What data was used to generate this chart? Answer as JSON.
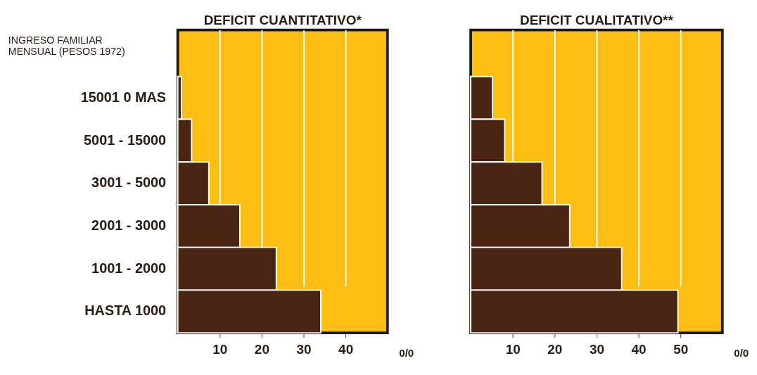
{
  "chart_data": [
    {
      "type": "bar",
      "orientation": "horizontal",
      "title": "DEFICIT CUANTITATIVO*",
      "ylabel": "INGRESO FAMILIAR\nMENSUAL (PESOS 1972)",
      "xlabel": "0/0",
      "categories": [
        "15001  0  MAS",
        "5001 - 15000",
        "3001 - 5000",
        "2001 - 3000",
        "1001 - 2000",
        "HASTA  1000"
      ],
      "series": [
        {
          "color": "#4a2412",
          "values": [
            0.9,
            3.3,
            7.4,
            14.8,
            23.5,
            34.1
          ]
        }
      ],
      "xlim": [
        0,
        50
      ],
      "xticks": [
        10,
        20,
        30,
        40
      ],
      "grid": "x",
      "legend": false
    },
    {
      "type": "bar",
      "orientation": "horizontal",
      "title": "DEFICIT CUALITATIVO**",
      "xlabel": "0/0",
      "categories": [
        null,
        null,
        null,
        null,
        null,
        null
      ],
      "series": [
        {
          "color": "#4a2412",
          "values": [
            5.2,
            8.1,
            17.0,
            23.6,
            36.0,
            49.4
          ]
        }
      ],
      "xlim": [
        0,
        60
      ],
      "xticks": [
        10,
        20,
        30,
        40,
        50
      ],
      "grid": "x",
      "legend": false,
      "tick_labels": "x"
    }
  ]
}
